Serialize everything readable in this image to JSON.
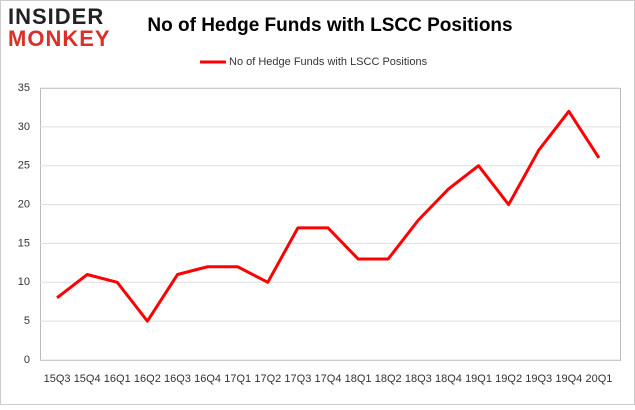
{
  "logo": {
    "line1": "INSIDER",
    "line2": "MONKEY"
  },
  "chart_data": {
    "type": "line",
    "title": "No of Hedge Funds with LSCC Positions",
    "categories": [
      "15Q3",
      "15Q4",
      "16Q1",
      "16Q2",
      "16Q3",
      "16Q4",
      "17Q1",
      "17Q2",
      "17Q3",
      "17Q4",
      "18Q1",
      "18Q2",
      "18Q3",
      "18Q4",
      "19Q1",
      "19Q2",
      "19Q3",
      "19Q4",
      "20Q1"
    ],
    "series": [
      {
        "name": "No of Hedge Funds with LSCC Positions",
        "color": "#ff0000",
        "values": [
          8,
          11,
          10,
          5,
          11,
          12,
          12,
          10,
          17,
          17,
          13,
          13,
          18,
          22,
          25,
          20,
          27,
          32,
          26
        ]
      }
    ],
    "ylim": [
      0,
      35
    ],
    "yticks": [
      0,
      5,
      10,
      15,
      20,
      25,
      30,
      35
    ],
    "grid": true,
    "legend": "top"
  }
}
